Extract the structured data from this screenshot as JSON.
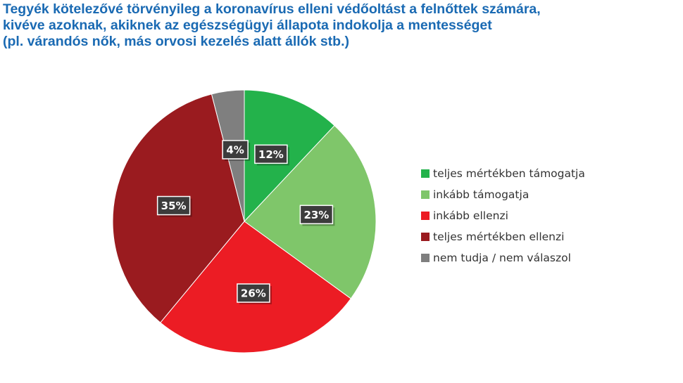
{
  "title_lines": [
    "Tegyék kötelezővé törvényileg a koronavírus elleni védőoltást a felnőttek számára,",
    "kivéve azoknak, akiknek az egészségügyi állapota indokolja a mentességet",
    "(pl. várandós nők, más orvosi kezelés alatt állók stb.)"
  ],
  "chart_data": {
    "type": "pie",
    "title": "Tegyék kötelezővé törvényileg a koronavírus elleni védőoltást a felnőttek számára, kivéve azoknak, akiknek az egészségügyi állapota indokolja a mentességet (pl. várandós nők, más orvosi kezelés alatt állók stb.)",
    "legend_position": "right",
    "slices": [
      {
        "label": "teljes mértékben támogatja",
        "value": 12,
        "display": "12%",
        "color": "#23b24b"
      },
      {
        "label": "inkább támogatja",
        "value": 23,
        "display": "23%",
        "color": "#7fc66a"
      },
      {
        "label": "inkább ellenzi",
        "value": 26,
        "display": "26%",
        "color": "#ec1c24"
      },
      {
        "label": "teljes mértékben ellenzi",
        "value": 35,
        "display": "35%",
        "color": "#9a1b1f"
      },
      {
        "label": "nem tudja / nem válaszol",
        "value": 4,
        "display": "4%",
        "color": "#7f7f7f"
      }
    ]
  }
}
